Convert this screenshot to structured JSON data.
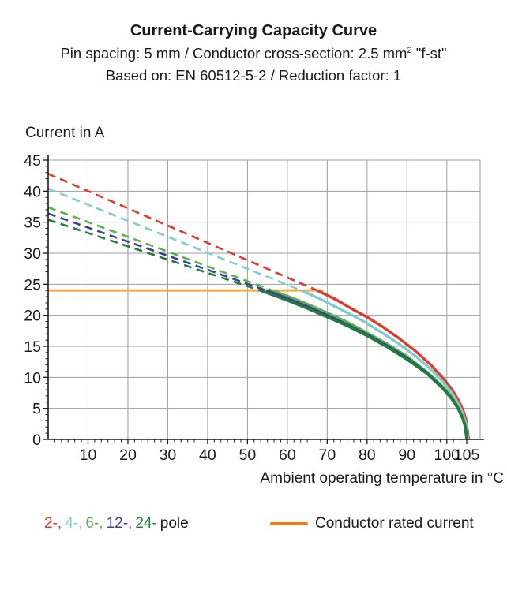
{
  "header": {
    "title": "Current-Carrying Capacity Curve",
    "subtitle_pre": "Pin spacing: 5 mm / Conductor cross-section: 2.5 mm",
    "subtitle_sup": "2",
    "subtitle_post": " \"f-st\"",
    "basis": "Based on: EN 60512-5-2 / Reduction factor: 1"
  },
  "chart_data": {
    "type": "line",
    "title": "Current-Carrying Capacity Curve",
    "xlabel": "Ambient operating temperature in °C",
    "ylabel": "Current in A",
    "xlim": [
      0,
      108.3
    ],
    "ylim": [
      0,
      45
    ],
    "x_major_ticks": [
      10,
      20,
      30,
      40,
      50,
      60,
      70,
      80,
      90,
      100,
      105
    ],
    "x_gridlines": [
      10,
      20,
      30,
      40,
      50,
      60,
      70,
      80,
      90,
      100
    ],
    "x_minor_step": 1.6667,
    "y_major_ticks": [
      0,
      5,
      10,
      15,
      20,
      25,
      30,
      35,
      40,
      45
    ],
    "y_gridlines": [
      5,
      10,
      15,
      20,
      25,
      30,
      35,
      40,
      45
    ],
    "y_minor_step": 1,
    "grid": true,
    "grid_color": "#9c9c9c",
    "axis_color": "#1a1a1a",
    "conductor_rated_current": {
      "label": "Conductor rated current",
      "value_a": 24,
      "x_range": [
        0,
        69
      ],
      "chart_line_color": "#f5a843"
    },
    "series": [
      {
        "name": "2-pole",
        "color": "#e23a2a",
        "dashed": [
          [
            0,
            42.8
          ],
          [
            67.5,
            24
          ]
        ],
        "solid": [
          [
            67.5,
            24
          ],
          [
            72,
            22.6
          ],
          [
            76,
            21.1
          ],
          [
            80,
            19.7
          ],
          [
            84,
            18.1
          ],
          [
            88,
            16.3
          ],
          [
            92,
            14.3
          ],
          [
            96,
            12.0
          ],
          [
            99,
            9.9
          ],
          [
            101,
            8.3
          ],
          [
            102,
            7.3
          ],
          [
            103,
            6.2
          ],
          [
            104,
            4.8
          ],
          [
            104.8,
            3.3
          ],
          [
            105.5,
            0
          ]
        ]
      },
      {
        "name": "4-pole",
        "color": "#82cbd1",
        "dashed": [
          [
            0,
            40.4
          ],
          [
            63.5,
            24
          ]
        ],
        "solid": [
          [
            63.5,
            24
          ],
          [
            68,
            22.7
          ],
          [
            72,
            21.4
          ],
          [
            76,
            20.1
          ],
          [
            80,
            18.7
          ],
          [
            84,
            17.1
          ],
          [
            88,
            15.4
          ],
          [
            92,
            13.5
          ],
          [
            96,
            11.3
          ],
          [
            99,
            9.3
          ],
          [
            101,
            7.7
          ],
          [
            102,
            6.7
          ],
          [
            103,
            5.6
          ],
          [
            104,
            4.2
          ],
          [
            104.8,
            2.6
          ],
          [
            105.3,
            0
          ]
        ]
      },
      {
        "name": "6-pole",
        "color": "#5bb24e",
        "dashed": [
          [
            0,
            37.4
          ],
          [
            56.3,
            24
          ]
        ],
        "solid": [
          [
            56.3,
            24
          ],
          [
            60,
            23.1
          ],
          [
            65,
            21.8
          ],
          [
            70,
            20.4
          ],
          [
            75,
            18.9
          ],
          [
            80,
            17.2
          ],
          [
            85,
            15.4
          ],
          [
            90,
            13.4
          ],
          [
            95,
            10.9
          ],
          [
            99,
            8.5
          ],
          [
            101,
            7.0
          ],
          [
            102,
            6.1
          ],
          [
            103,
            5.0
          ],
          [
            104,
            3.6
          ],
          [
            104.7,
            2.2
          ],
          [
            105.1,
            0
          ]
        ]
      },
      {
        "name": "12-pole",
        "color": "#3d3f99",
        "dashed": [
          [
            0,
            36.4
          ],
          [
            54.7,
            24
          ]
        ],
        "solid": [
          [
            54.7,
            24
          ],
          [
            60,
            22.7
          ],
          [
            65,
            21.4
          ],
          [
            70,
            20.0
          ],
          [
            75,
            18.5
          ],
          [
            80,
            16.9
          ],
          [
            85,
            15.1
          ],
          [
            90,
            13.1
          ],
          [
            95,
            10.7
          ],
          [
            99,
            8.3
          ],
          [
            101,
            6.8
          ],
          [
            102,
            5.9
          ],
          [
            103,
            4.8
          ],
          [
            104,
            3.4
          ],
          [
            104.6,
            2.1
          ],
          [
            105,
            0
          ]
        ]
      },
      {
        "name": "24-pole",
        "color": "#1f7e3a",
        "dashed": [
          [
            0,
            35.4
          ],
          [
            53.2,
            24
          ]
        ],
        "solid": [
          [
            53.2,
            24
          ],
          [
            60,
            22.4
          ],
          [
            65,
            21.1
          ],
          [
            70,
            19.7
          ],
          [
            75,
            18.3
          ],
          [
            80,
            16.7
          ],
          [
            85,
            14.9
          ],
          [
            90,
            12.9
          ],
          [
            95,
            10.6
          ],
          [
            99,
            8.2
          ],
          [
            101,
            6.7
          ],
          [
            102,
            5.8
          ],
          [
            103,
            4.7
          ],
          [
            104,
            3.3
          ],
          [
            104.6,
            2.1
          ],
          [
            105,
            0
          ]
        ]
      }
    ]
  },
  "legend": {
    "poles": [
      {
        "label": "2-,",
        "color": "#e23a2a"
      },
      {
        "label": "4-,",
        "color": "#82cbd1"
      },
      {
        "label": "6-,",
        "color": "#5bb24e"
      },
      {
        "label": "12-,",
        "color": "#3d3f99"
      },
      {
        "label": "24-",
        "color": "#1f7e3a"
      }
    ],
    "poles_suffix": "pole",
    "rated_swatch_color": "#ed7d1e",
    "rated_label": "Conductor rated current"
  }
}
